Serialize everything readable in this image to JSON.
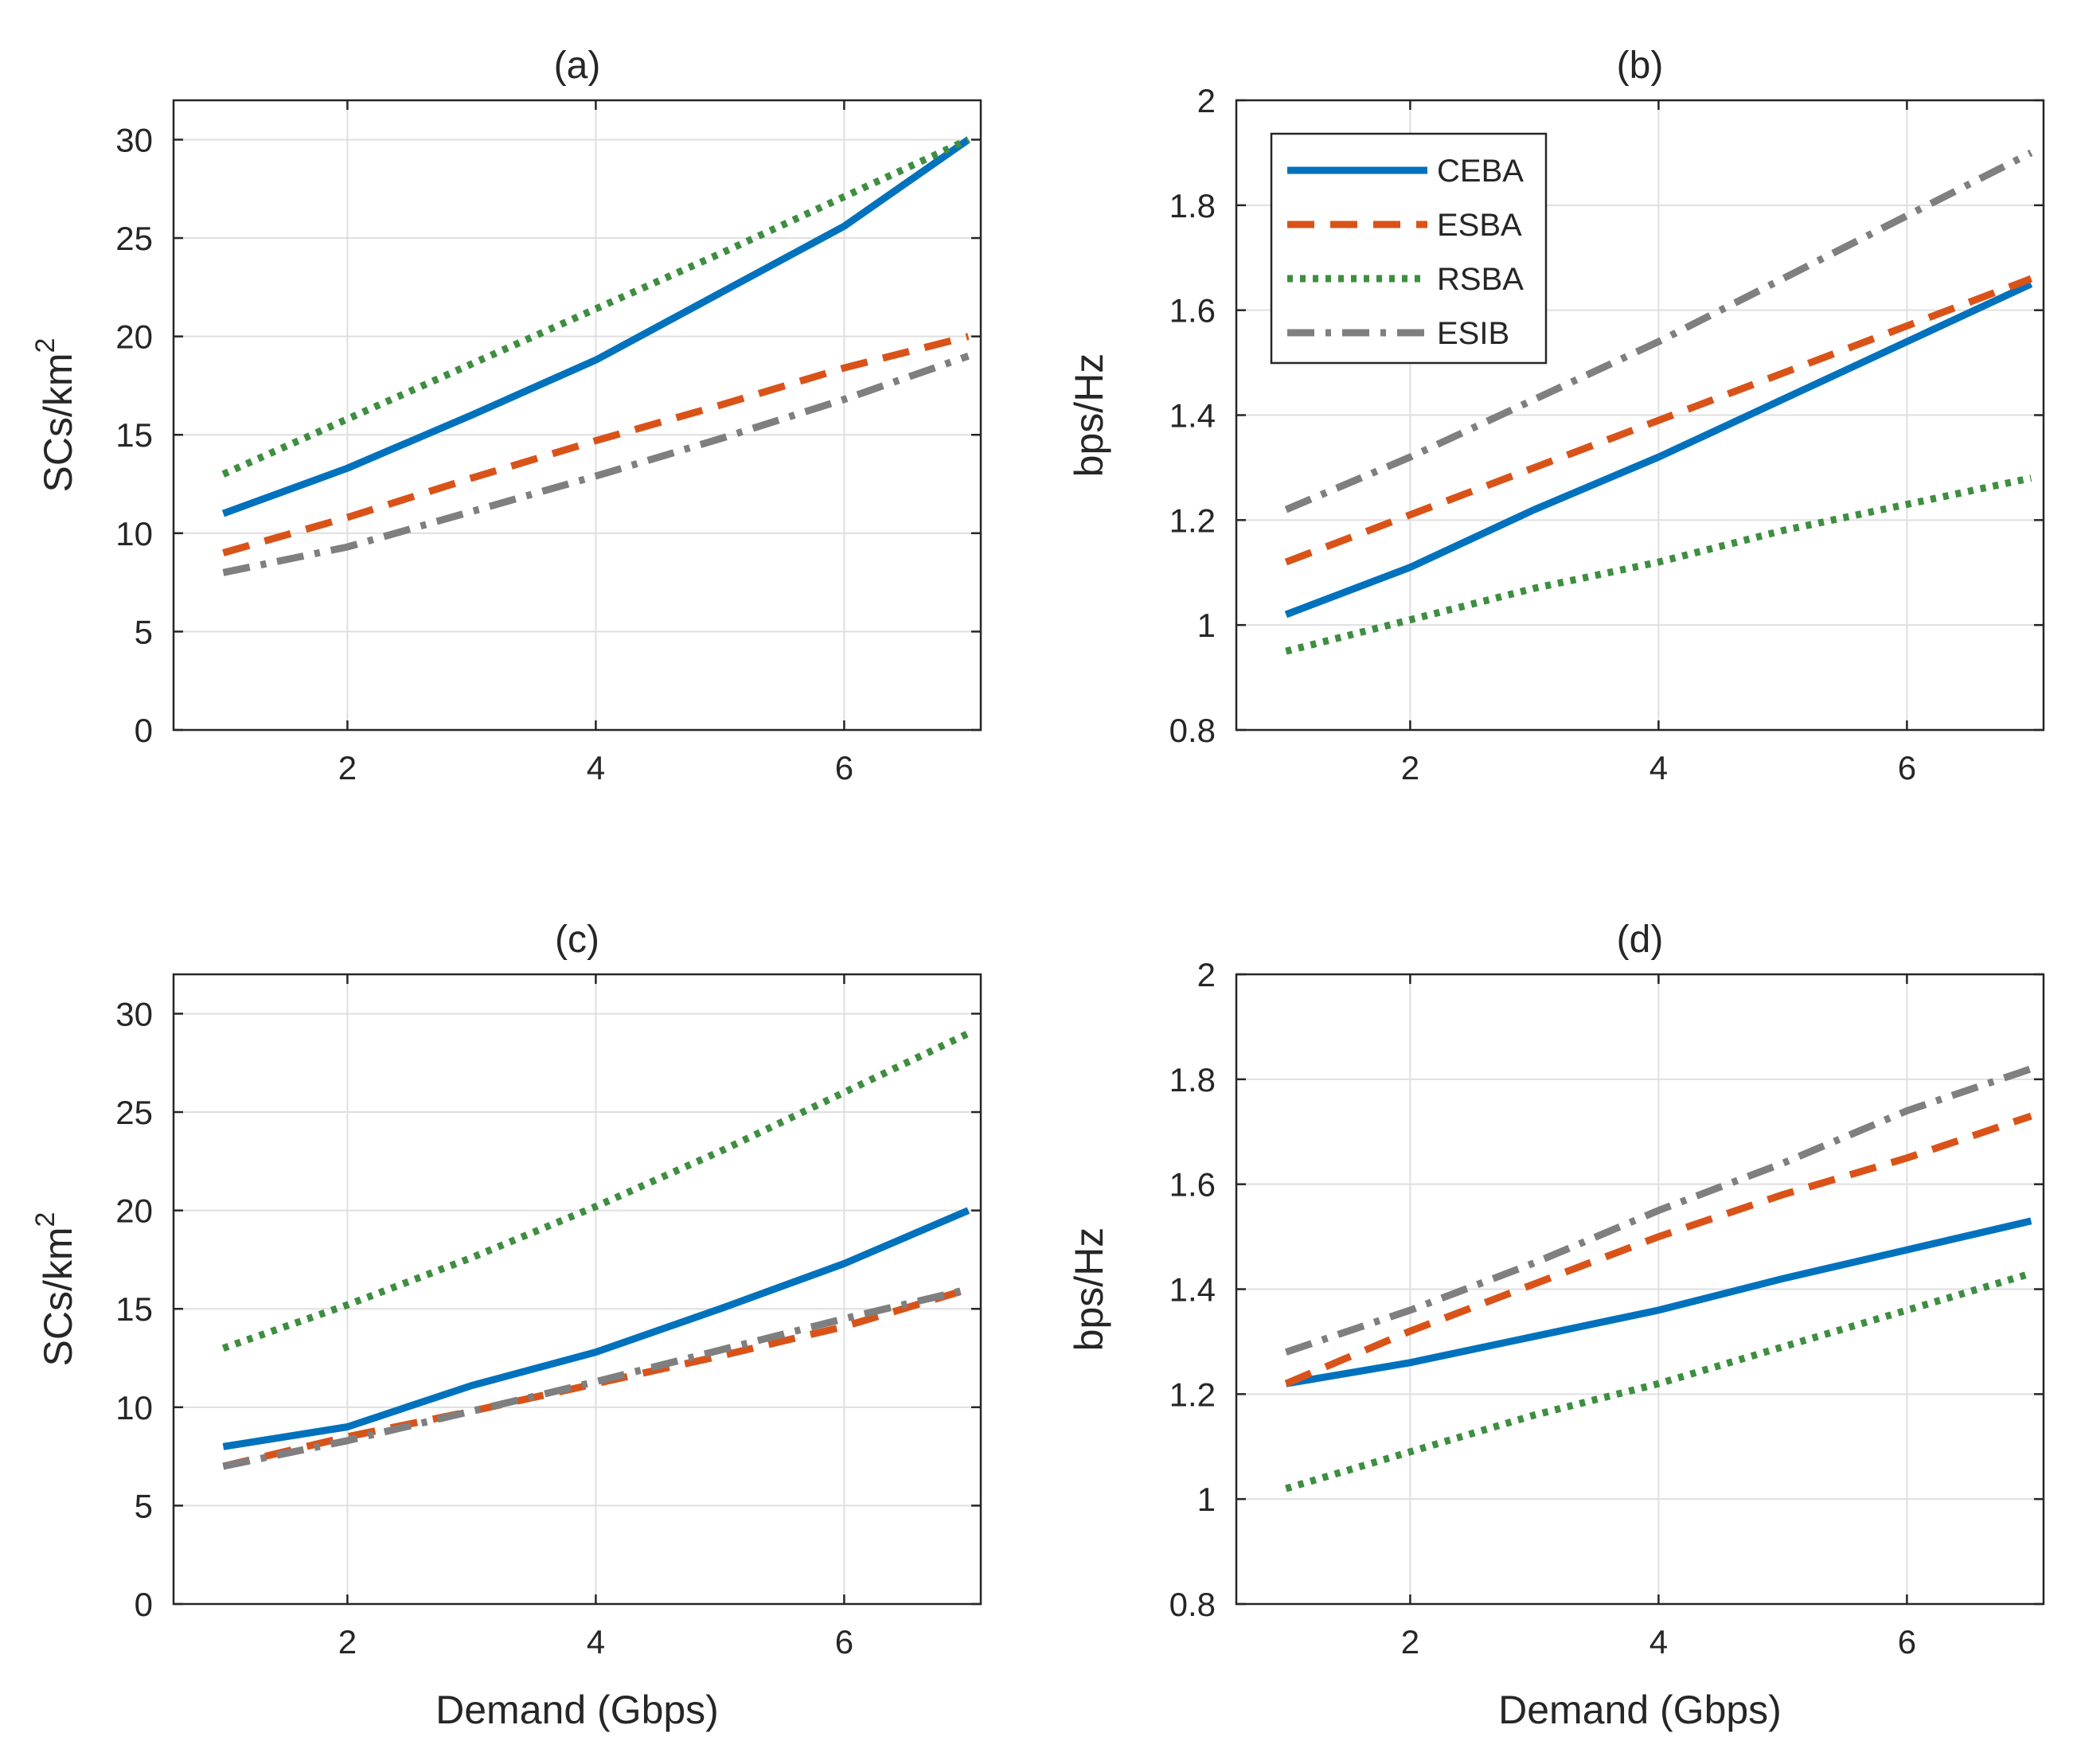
{
  "chart_data": [
    {
      "type": "line",
      "title": "(a)",
      "xlabel": "",
      "ylabel": "SCs/km",
      "ylabel_superscript": "2",
      "xlim": [
        0.6,
        7.1
      ],
      "ylim": [
        0,
        32
      ],
      "xticks": [
        "2",
        "4",
        "6"
      ],
      "yticks": [
        "0",
        "5",
        "10",
        "15",
        "20",
        "25",
        "30"
      ],
      "grid": true,
      "legend": false,
      "x": [
        1,
        2,
        3,
        4,
        5,
        6,
        7
      ],
      "series": [
        {
          "name": "CEBA",
          "values": [
            11,
            13.3,
            16,
            18.8,
            22.2,
            25.6,
            30
          ]
        },
        {
          "name": "ESBA",
          "values": [
            9,
            10.8,
            12.8,
            14.7,
            16.5,
            18.4,
            20
          ]
        },
        {
          "name": "RSBA",
          "values": [
            13,
            15.8,
            18.6,
            21.4,
            24.2,
            27.1,
            30
          ]
        },
        {
          "name": "ESIB",
          "values": [
            8,
            9.3,
            11.1,
            12.9,
            14.8,
            16.8,
            19
          ]
        }
      ]
    },
    {
      "type": "line",
      "title": "(b)",
      "xlabel": "",
      "ylabel": "bps/Hz",
      "xlim": [
        0.6,
        7.1
      ],
      "ylim": [
        0.8,
        2
      ],
      "xticks": [
        "2",
        "4",
        "6"
      ],
      "yticks": [
        "0.8",
        "1",
        "1.2",
        "1.4",
        "1.6",
        "1.8",
        "2"
      ],
      "grid": true,
      "legend": true,
      "legend_position": "top-left",
      "x": [
        1,
        2,
        3,
        4,
        5,
        6,
        7
      ],
      "series": [
        {
          "name": "CEBA",
          "values": [
            1.02,
            1.11,
            1.22,
            1.32,
            1.43,
            1.54,
            1.65
          ]
        },
        {
          "name": "ESBA",
          "values": [
            1.12,
            1.21,
            1.3,
            1.39,
            1.48,
            1.57,
            1.66
          ]
        },
        {
          "name": "RSBA",
          "values": [
            0.95,
            1.01,
            1.07,
            1.12,
            1.18,
            1.23,
            1.28
          ]
        },
        {
          "name": "ESIB",
          "values": [
            1.22,
            1.32,
            1.43,
            1.54,
            1.66,
            1.78,
            1.9
          ]
        }
      ]
    },
    {
      "type": "line",
      "title": "(c)",
      "xlabel": "Demand (Gbps)",
      "ylabel": "SCs/km",
      "ylabel_superscript": "2",
      "xlim": [
        0.6,
        7.1
      ],
      "ylim": [
        0,
        32
      ],
      "xticks": [
        "2",
        "4",
        "6"
      ],
      "yticks": [
        "0",
        "5",
        "10",
        "15",
        "20",
        "25",
        "30"
      ],
      "grid": true,
      "legend": false,
      "x": [
        1,
        2,
        3,
        4,
        5,
        6,
        7
      ],
      "series": [
        {
          "name": "CEBA",
          "values": [
            8,
            9,
            11.1,
            12.8,
            15,
            17.3,
            20
          ]
        },
        {
          "name": "ESBA",
          "values": [
            7,
            8.5,
            9.8,
            11.2,
            12.6,
            14.1,
            16
          ]
        },
        {
          "name": "RSBA",
          "values": [
            13,
            15.2,
            17.6,
            20.2,
            23,
            26,
            29
          ]
        },
        {
          "name": "ESIB",
          "values": [
            7,
            8.3,
            9.8,
            11.3,
            12.9,
            14.5,
            16
          ]
        }
      ]
    },
    {
      "type": "line",
      "title": "(d)",
      "xlabel": "Demand (Gbps)",
      "ylabel": "bps/Hz",
      "xlim": [
        0.6,
        7.1
      ],
      "ylim": [
        0.8,
        2
      ],
      "xticks": [
        "2",
        "4",
        "6"
      ],
      "yticks": [
        "0.8",
        "1",
        "1.2",
        "1.4",
        "1.6",
        "1.8",
        "2"
      ],
      "grid": true,
      "legend": false,
      "x": [
        1,
        2,
        3,
        4,
        5,
        6,
        7
      ],
      "series": [
        {
          "name": "CEBA",
          "values": [
            1.22,
            1.26,
            1.31,
            1.36,
            1.42,
            1.475,
            1.53
          ]
        },
        {
          "name": "ESBA",
          "values": [
            1.22,
            1.32,
            1.41,
            1.5,
            1.58,
            1.65,
            1.73
          ]
        },
        {
          "name": "RSBA",
          "values": [
            1.02,
            1.09,
            1.16,
            1.22,
            1.29,
            1.36,
            1.43
          ]
        },
        {
          "name": "ESIB",
          "values": [
            1.28,
            1.36,
            1.45,
            1.55,
            1.64,
            1.74,
            1.82
          ]
        }
      ]
    }
  ],
  "series_styles": {
    "CEBA": {
      "color": "#0072BD",
      "dash": "solid"
    },
    "ESBA": {
      "color": "#D95319",
      "dash": "dashed"
    },
    "RSBA": {
      "color": "#3E8E41",
      "dash": "dotted"
    },
    "ESIB": {
      "color": "#7F7F7F",
      "dash": "dashdot"
    }
  },
  "axes_color": "#262626",
  "grid_color": "#DFDFDF"
}
